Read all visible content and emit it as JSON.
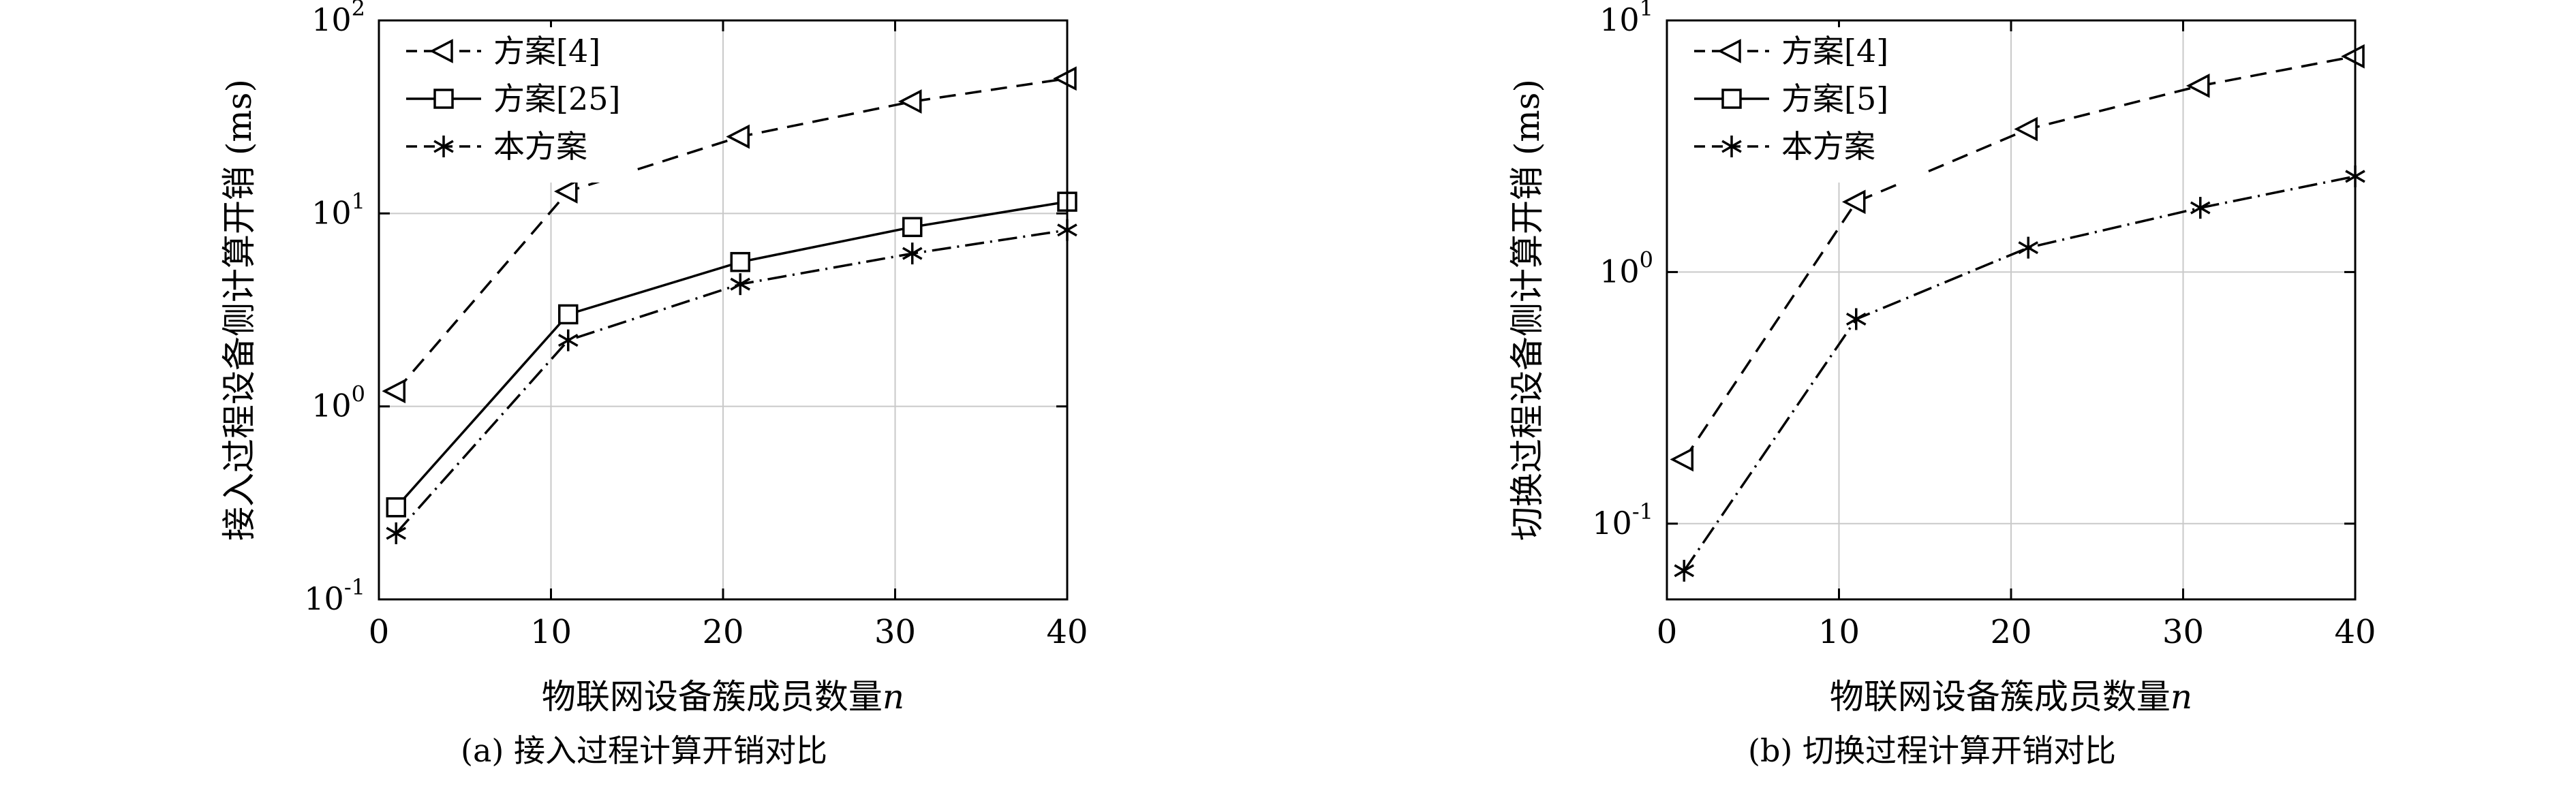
{
  "page": {
    "background": "#ffffff",
    "grid_color": "#c9c9c9",
    "axis_color": "#000000"
  },
  "chart_data": [
    {
      "type": "line",
      "title": "(a) 接入过程计算开销对比",
      "xlabel": "物联网设备簇成员数量",
      "xlabel_italic": "n",
      "ylabel": "接入过程设备侧计算开销 (ms)",
      "x": [
        1,
        11,
        21,
        31,
        40
      ],
      "xlim": [
        0,
        40
      ],
      "xticks": [
        0,
        10,
        20,
        30,
        40
      ],
      "yscale": "log",
      "ylim": [
        0.1,
        100
      ],
      "yticks": [
        0.1,
        1,
        10,
        100
      ],
      "grid": true,
      "legend_position": "top-left",
      "series": [
        {
          "name": "方案[4]",
          "marker": "triangle-left",
          "line": "dashed",
          "color": "#000000",
          "values": [
            1.2,
            13,
            25,
            38,
            50
          ]
        },
        {
          "name": "方案[25]",
          "marker": "square",
          "line": "solid",
          "color": "#000000",
          "values": [
            0.3,
            3.0,
            5.6,
            8.5,
            11.5
          ]
        },
        {
          "name": "本方案",
          "marker": "asterisk",
          "line": "dashdot",
          "color": "#000000",
          "values": [
            0.22,
            2.2,
            4.3,
            6.2,
            8.2
          ]
        }
      ]
    },
    {
      "type": "line",
      "title": "(b) 切换过程计算开销对比",
      "xlabel": "物联网设备簇成员数量",
      "xlabel_italic": "n",
      "ylabel": "切换过程设备侧计算开销 (ms)",
      "x": [
        1,
        11,
        21,
        31,
        40
      ],
      "xlim": [
        0,
        40
      ],
      "xticks": [
        0,
        10,
        20,
        30,
        40
      ],
      "yscale": "log",
      "ylim": [
        0.05,
        10
      ],
      "yticks": [
        0.1,
        1,
        10
      ],
      "grid": true,
      "legend_position": "top-left",
      "series": [
        {
          "name": "方案[4]",
          "marker": "triangle-left",
          "line": "dashed",
          "color": "#000000",
          "values": [
            0.18,
            1.9,
            3.7,
            5.5,
            7.2
          ]
        },
        {
          "name": "方案[5]",
          "marker": "square",
          "line": "solid",
          "color": "#000000",
          "values": null,
          "legend_only": true
        },
        {
          "name": "本方案",
          "marker": "asterisk",
          "line": "dashdot",
          "color": "#000000",
          "values": [
            0.065,
            0.65,
            1.25,
            1.8,
            2.4
          ]
        }
      ]
    }
  ]
}
